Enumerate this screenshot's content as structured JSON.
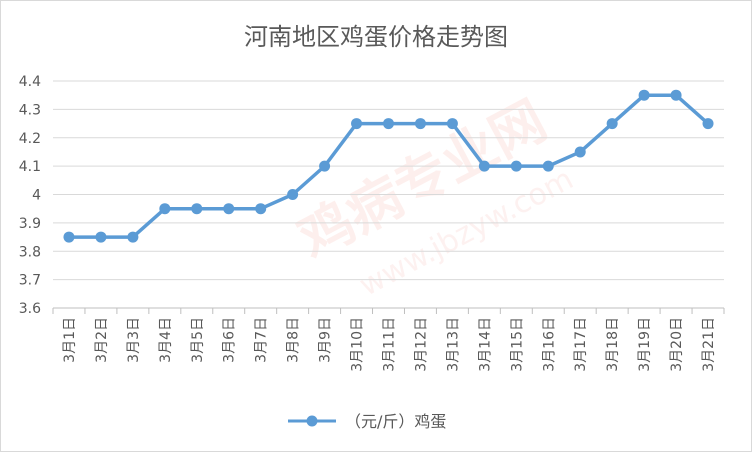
{
  "chart_data": {
    "type": "line",
    "title": "河南地区鸡蛋价格走势图",
    "categories": [
      "3月1日",
      "3月2日",
      "3月3日",
      "3月4日",
      "3月5日",
      "3月6日",
      "3月7日",
      "3月8日",
      "3月9日",
      "3月10日",
      "3月11日",
      "3月12日",
      "3月13日",
      "3月14日",
      "3月15日",
      "3月16日",
      "3月17日",
      "3月18日",
      "3月19日",
      "3月20日",
      "3月21日"
    ],
    "series": [
      {
        "name": "（元/斤）鸡蛋",
        "values": [
          3.85,
          3.85,
          3.85,
          3.95,
          3.95,
          3.95,
          3.95,
          4.0,
          4.1,
          4.25,
          4.25,
          4.25,
          4.25,
          4.1,
          4.1,
          4.1,
          4.15,
          4.25,
          4.35,
          4.35,
          4.25
        ]
      }
    ],
    "ylim": [
      3.6,
      4.4
    ],
    "yticks": [
      "3.6",
      "3.7",
      "3.8",
      "3.9",
      "4",
      "4.1",
      "4.2",
      "4.3",
      "4.4"
    ],
    "grid": true,
    "legend_position": "bottom",
    "series_color": "#5b9bd5",
    "watermark": [
      "鸡病专业网",
      "www.jbzyw.com"
    ]
  }
}
